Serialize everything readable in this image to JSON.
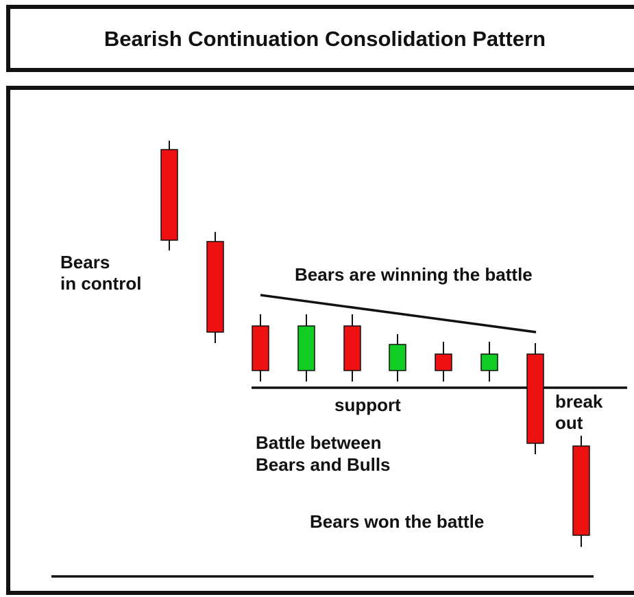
{
  "header": {
    "title": "Bearish Continuation Consolidation Pattern"
  },
  "annotations": [
    {
      "lines": [
        "Bears",
        "in control"
      ]
    },
    {
      "lines": [
        "Bears are winning the battle"
      ]
    },
    {
      "lines": [
        "support"
      ]
    },
    {
      "lines": [
        "Battle between",
        "Bears and Bulls"
      ]
    },
    {
      "lines": [
        "break",
        "out"
      ]
    },
    {
      "lines": [
        "Bears won the battle"
      ]
    }
  ]
}
